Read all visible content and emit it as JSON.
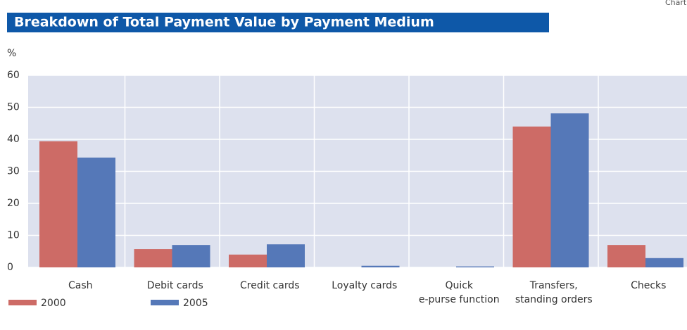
{
  "chart_data": {
    "type": "bar",
    "corner_label": "Chart",
    "title": "Breakdown of Total Payment Value by Payment Medium",
    "y_label": "%",
    "categories": [
      [
        "Cash"
      ],
      [
        "Debit cards"
      ],
      [
        "Credit cards"
      ],
      [
        "Loyalty cards"
      ],
      [
        "Quick",
        "e-purse function"
      ],
      [
        "Transfers,",
        "standing orders"
      ],
      [
        "Checks"
      ]
    ],
    "series": [
      {
        "name": "2000",
        "color": "#cd6b66",
        "values": [
          39.4,
          5.7,
          4.0,
          0,
          0,
          44.0,
          7.0
        ]
      },
      {
        "name": "2005",
        "color": "#5578b8",
        "values": [
          34.3,
          7.0,
          7.2,
          0.5,
          0.3,
          48.1,
          2.9
        ]
      }
    ],
    "ylim": [
      0,
      60
    ],
    "yticks": [
      0,
      10,
      20,
      30,
      40,
      50,
      60
    ],
    "grid": true,
    "legend": "bottom-left"
  }
}
